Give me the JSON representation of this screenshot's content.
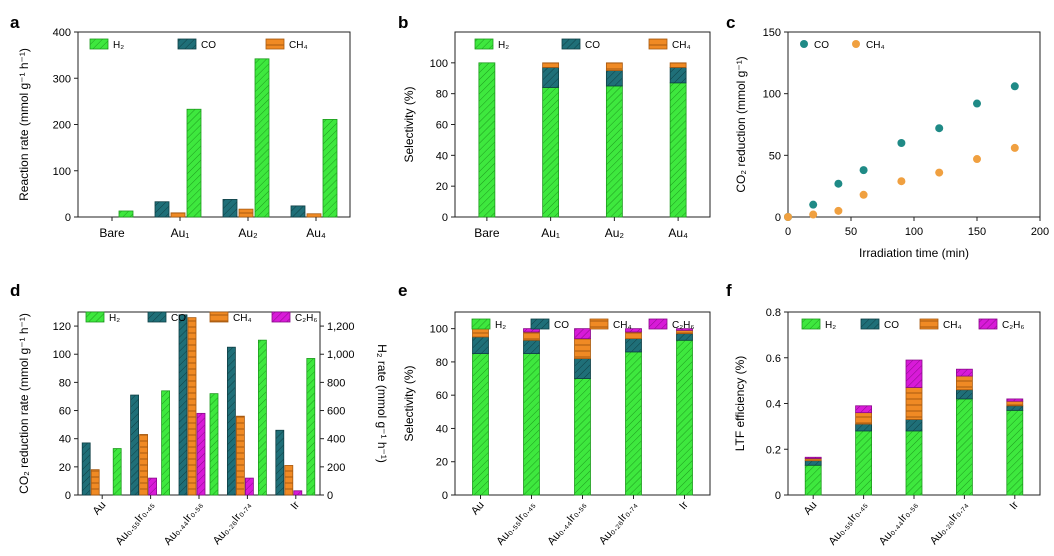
{
  "colors": {
    "h2": "#3ee83e",
    "co": "#1f6f78",
    "ch4": "#f08a24",
    "c2h6": "#d81ad8",
    "axis": "#222222",
    "co_dot": "#1f8a86",
    "ch4_dot": "#f0a040"
  },
  "chart_data": [
    {
      "panel": "a",
      "type": "bar",
      "ylabel": "Reaction rate (mmol g⁻¹ h⁻¹)",
      "ylim": [
        0,
        400
      ],
      "yticks": [
        "0",
        "100",
        "200",
        "300",
        "400"
      ],
      "categories": [
        "Bare",
        "Au₁",
        "Au₂",
        "Au₄"
      ],
      "series": [
        {
          "name": "CO",
          "legend": "CO",
          "key": "co",
          "values": [
            0,
            33,
            38,
            24
          ]
        },
        {
          "name": "CH₄",
          "legend": "CH₄",
          "key": "ch4",
          "values": [
            0,
            9,
            17,
            7
          ]
        },
        {
          "name": "H₂",
          "legend": "H₂",
          "key": "h2",
          "values": [
            13,
            233,
            342,
            211
          ]
        }
      ],
      "legend_order": [
        "h2",
        "co",
        "ch4"
      ]
    },
    {
      "panel": "b",
      "type": "stacked-bar",
      "ylabel": "Selectivity (%)",
      "ylim": [
        0,
        120
      ],
      "yticks": [
        "0",
        "20",
        "40",
        "60",
        "80",
        "100"
      ],
      "categories": [
        "Bare",
        "Au₁",
        "Au₂",
        "Au₄"
      ],
      "series": [
        {
          "name": "H₂",
          "legend": "H₂",
          "key": "h2",
          "values": [
            100,
            84,
            85,
            87
          ]
        },
        {
          "name": "CO",
          "legend": "CO",
          "key": "co",
          "values": [
            0,
            13,
            10,
            10
          ]
        },
        {
          "name": "CH₄",
          "legend": "CH₄",
          "key": "ch4",
          "values": [
            0,
            3,
            5,
            3
          ]
        }
      ]
    },
    {
      "panel": "c",
      "type": "scatter",
      "xlabel": "Irradiation time (min)",
      "ylabel": "CO₂ reduction (mmol g⁻¹)",
      "xlim": [
        0,
        200
      ],
      "ylim": [
        0,
        150
      ],
      "xticks": [
        "0",
        "50",
        "100",
        "150",
        "200"
      ],
      "yticks": [
        "0",
        "50",
        "100",
        "150"
      ],
      "series": [
        {
          "name": "CO",
          "legend": "CO",
          "key": "co_dot",
          "x": [
            0,
            20,
            40,
            60,
            90,
            120,
            150,
            180
          ],
          "y": [
            0,
            10,
            27,
            38,
            60,
            72,
            92,
            106
          ]
        },
        {
          "name": "CH₄",
          "legend": "CH₄",
          "key": "ch4_dot",
          "x": [
            0,
            20,
            40,
            60,
            90,
            120,
            150,
            180
          ],
          "y": [
            0,
            2,
            5,
            18,
            29,
            36,
            47,
            56
          ]
        }
      ]
    },
    {
      "panel": "d",
      "type": "bar",
      "ylabel": "CO₂ reduction rate (mmol g⁻¹ h⁻¹)",
      "ylabel_right": "H₂ rate (mmol g⁻¹ h⁻¹)",
      "ylim": [
        0,
        130
      ],
      "yticks": [
        "0",
        "20",
        "40",
        "60",
        "80",
        "100",
        "120"
      ],
      "ylim_right": [
        0,
        1300
      ],
      "yticks_right": [
        "0",
        "200",
        "400",
        "600",
        "800",
        "1,000",
        "1,200"
      ],
      "categories": [
        "Au",
        "Au₀.₅₅Ir₀.₄₅",
        "Au₀.₄₄Ir₀.₅₆",
        "Au₀.₂₆Ir₀.₇₄",
        "Ir"
      ],
      "series": [
        {
          "name": "CO",
          "legend": "CO",
          "key": "co",
          "axis": "left",
          "values": [
            37,
            71,
            128,
            105,
            46
          ]
        },
        {
          "name": "CH₄",
          "legend": "CH₄",
          "key": "ch4",
          "axis": "left",
          "values": [
            18,
            43,
            126,
            56,
            21
          ]
        },
        {
          "name": "C₂H₆",
          "legend": "C₂H₆",
          "key": "c2h6",
          "axis": "left",
          "values": [
            0,
            12,
            58,
            12,
            3
          ]
        },
        {
          "name": "H₂",
          "legend": "H₂",
          "key": "h2",
          "axis": "right",
          "values": [
            330,
            740,
            720,
            1100,
            970
          ]
        }
      ],
      "legend_order": [
        "h2",
        "co",
        "ch4",
        "c2h6"
      ]
    },
    {
      "panel": "e",
      "type": "stacked-bar",
      "ylabel": "Selectivity (%)",
      "ylim": [
        0,
        110
      ],
      "yticks": [
        "0",
        "20",
        "40",
        "60",
        "80",
        "100"
      ],
      "categories": [
        "Au",
        "Au₀.₅₅Ir₀.₄₅",
        "Au₀.₄₄Ir₀.₅₆",
        "Au₀.₂₆Ir₀.₇₄",
        "Ir"
      ],
      "series": [
        {
          "name": "H₂",
          "legend": "H₂",
          "key": "h2",
          "values": [
            85,
            85,
            70,
            86,
            93
          ]
        },
        {
          "name": "CO",
          "legend": "CO",
          "key": "co",
          "values": [
            10,
            8,
            12,
            8,
            4
          ]
        },
        {
          "name": "CH₄",
          "legend": "CH₄",
          "key": "ch4",
          "values": [
            5,
            5,
            12,
            4,
            2
          ]
        },
        {
          "name": "C₂H₆",
          "legend": "C₂H₆",
          "key": "c2h6",
          "values": [
            0,
            2,
            6,
            2,
            1
          ]
        }
      ]
    },
    {
      "panel": "f",
      "type": "stacked-bar",
      "ylabel": "LTF efficiency (%)",
      "ylim": [
        0,
        0.8
      ],
      "yticks": [
        "0",
        "0.2",
        "0.4",
        "0.6",
        "0.8"
      ],
      "categories": [
        "Au",
        "Au₀.₅₅Ir₀.₄₅",
        "Au₀.₄₄Ir₀.₅₆",
        "Au₀.₂₆Ir₀.₇₄",
        "Ir"
      ],
      "series": [
        {
          "name": "H₂",
          "legend": "H₂",
          "key": "h2",
          "values": [
            0.13,
            0.28,
            0.28,
            0.42,
            0.37
          ]
        },
        {
          "name": "CO",
          "legend": "CO",
          "key": "co",
          "values": [
            0.02,
            0.03,
            0.05,
            0.04,
            0.02
          ]
        },
        {
          "name": "CH₄",
          "legend": "CH₄",
          "key": "ch4",
          "values": [
            0.01,
            0.05,
            0.14,
            0.06,
            0.02
          ]
        },
        {
          "name": "C₂H₆",
          "legend": "C₂H₆",
          "key": "c2h6",
          "values": [
            0.005,
            0.03,
            0.12,
            0.03,
            0.01
          ]
        }
      ]
    }
  ]
}
